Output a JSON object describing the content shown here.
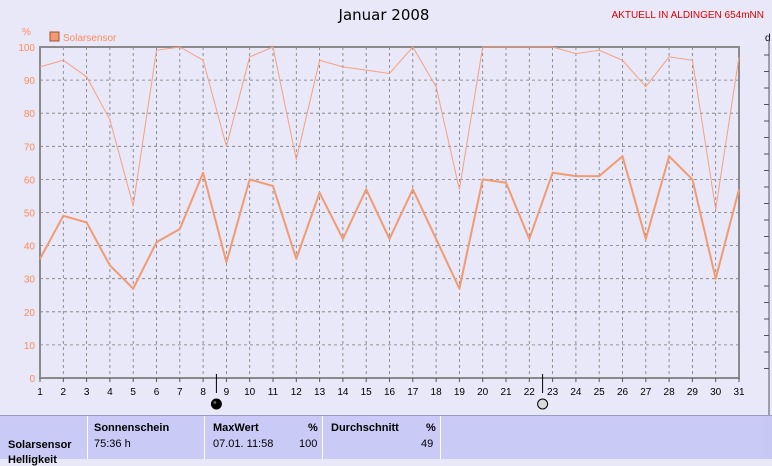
{
  "header": {
    "title": "Januar 2008",
    "alert": "AKTUELL IN ALDINGEN 654mNN"
  },
  "legend": {
    "label": "Solarsensor",
    "color": "#f29a72"
  },
  "units": {
    "y_left": "%",
    "y_right": "d"
  },
  "colors": {
    "series": "#f5a080",
    "series_strong": "#f29a72",
    "grid": "#7a7a7a",
    "axis": "#8a8a8a",
    "plot_bg": "#e8e8f8"
  },
  "moon_markers": [
    {
      "day": 9,
      "icon": "new-moon-icon"
    },
    {
      "day": 23,
      "icon": "full-moon-icon"
    }
  ],
  "chart_data": {
    "type": "line",
    "title": "Januar 2008",
    "xlabel": "",
    "ylabel": "%",
    "x": [
      1,
      2,
      3,
      4,
      5,
      6,
      7,
      8,
      9,
      10,
      11,
      12,
      13,
      14,
      15,
      16,
      17,
      18,
      19,
      20,
      21,
      22,
      23,
      24,
      25,
      26,
      27,
      28,
      29,
      30,
      31
    ],
    "xlim": [
      1,
      31
    ],
    "ylim": [
      0,
      100
    ],
    "yticks": [
      0,
      10,
      20,
      30,
      40,
      50,
      60,
      70,
      80,
      90,
      100
    ],
    "grid": true,
    "legend_position": "top-left",
    "series": [
      {
        "name": "Solarsensor",
        "style": "thin",
        "values": [
          94,
          96,
          91,
          78,
          52,
          99,
          100,
          96,
          70,
          97,
          100,
          66,
          96,
          94,
          93,
          92,
          100,
          88,
          57,
          100,
          100,
          100,
          100,
          98,
          99,
          96,
          88,
          97,
          96,
          51,
          97
        ]
      },
      {
        "name": "Solarsensor",
        "style": "thick",
        "values": [
          36,
          49,
          47,
          34,
          27,
          41,
          45,
          62,
          35,
          60,
          58,
          36,
          56,
          42,
          57,
          42,
          57,
          42,
          27,
          60,
          59,
          42,
          62,
          61,
          61,
          67,
          42,
          67,
          60,
          30,
          57
        ]
      }
    ]
  },
  "table": {
    "row_label": "Solarsensor",
    "row_label_2": "Helligkeit",
    "sunshine": {
      "header": "Sonnenschein",
      "value": "75:36 h"
    },
    "maxwert": {
      "header": "MaxWert",
      "unit": "%",
      "date": "07.01.  11:58",
      "value": "100"
    },
    "durchschnitt": {
      "header": "Durchschnitt",
      "unit": "%",
      "value": "49"
    }
  }
}
